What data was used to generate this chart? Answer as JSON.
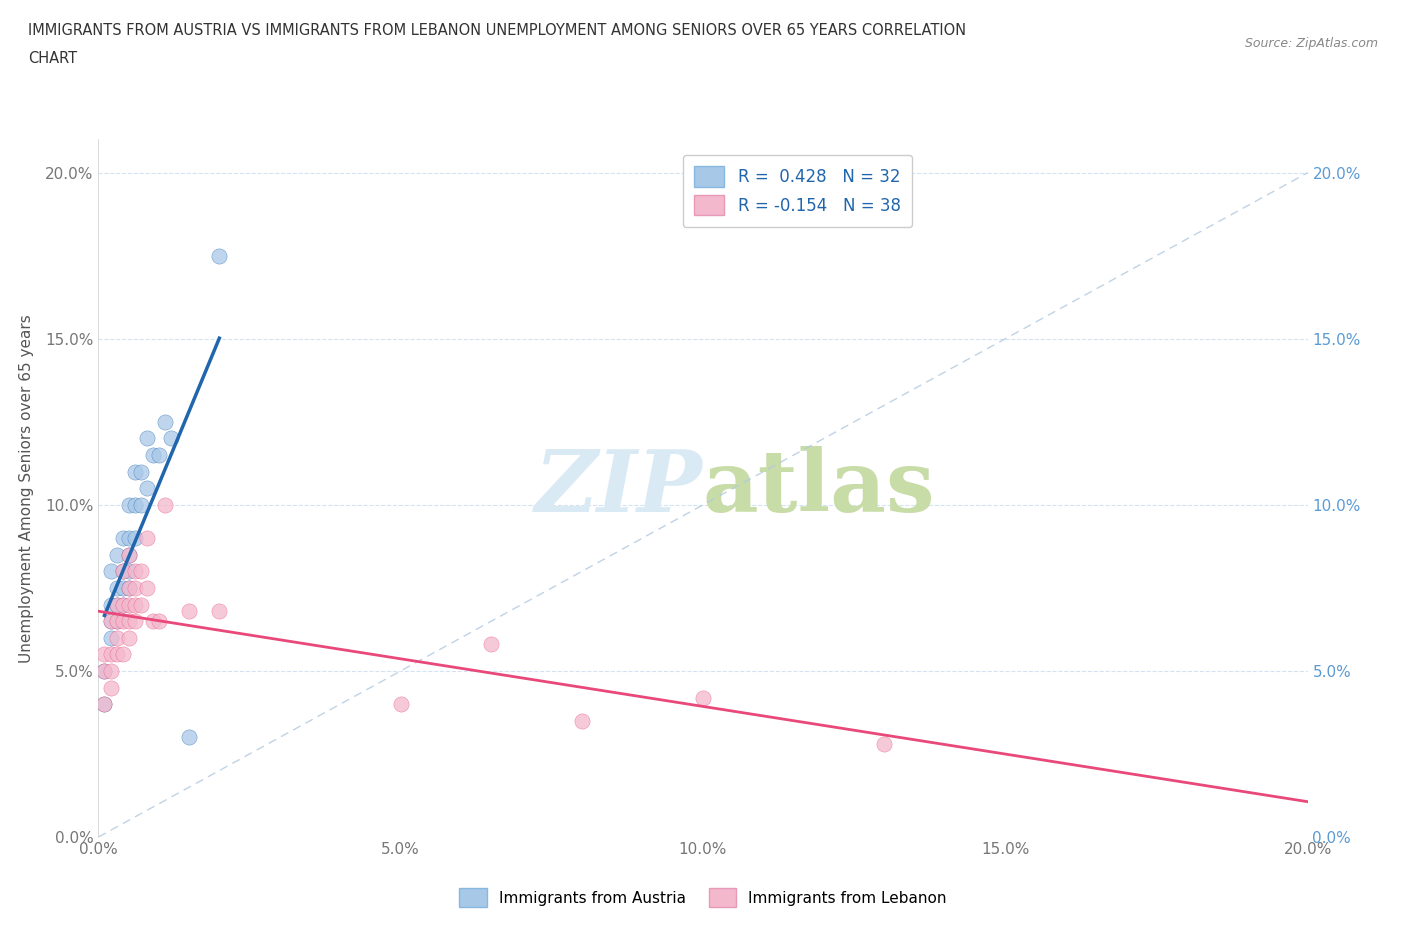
{
  "title_line1": "IMMIGRANTS FROM AUSTRIA VS IMMIGRANTS FROM LEBANON UNEMPLOYMENT AMONG SENIORS OVER 65 YEARS CORRELATION",
  "title_line2": "CHART",
  "source_text": "Source: ZipAtlas.com",
  "ylabel": "Unemployment Among Seniors over 65 years",
  "legend_bottom_austria": "Immigrants from Austria",
  "legend_bottom_lebanon": "Immigrants from Lebanon",
  "r_austria": 0.428,
  "n_austria": 32,
  "r_lebanon": -0.154,
  "n_lebanon": 38,
  "xlim": [
    0.0,
    0.2
  ],
  "ylim": [
    0.0,
    0.21
  ],
  "xticks": [
    0.0,
    0.05,
    0.1,
    0.15,
    0.2
  ],
  "yticks": [
    0.0,
    0.05,
    0.1,
    0.15,
    0.2
  ],
  "color_austria": "#a8c8e8",
  "color_lebanon": "#f4b8cc",
  "color_trendline_austria": "#2166ac",
  "color_trendline_lebanon": "#e8497a",
  "color_dashed": "#b0c8e0",
  "watermark_color": "#daeaf5",
  "austria_x": [
    0.001,
    0.001,
    0.002,
    0.002,
    0.002,
    0.002,
    0.003,
    0.003,
    0.003,
    0.003,
    0.004,
    0.004,
    0.004,
    0.004,
    0.005,
    0.005,
    0.005,
    0.005,
    0.005,
    0.006,
    0.006,
    0.006,
    0.007,
    0.007,
    0.008,
    0.008,
    0.009,
    0.01,
    0.011,
    0.012,
    0.015,
    0.02
  ],
  "austria_y": [
    0.04,
    0.05,
    0.06,
    0.065,
    0.07,
    0.08,
    0.065,
    0.07,
    0.075,
    0.085,
    0.07,
    0.075,
    0.08,
    0.09,
    0.075,
    0.08,
    0.085,
    0.09,
    0.1,
    0.09,
    0.1,
    0.11,
    0.1,
    0.11,
    0.105,
    0.12,
    0.115,
    0.115,
    0.125,
    0.12,
    0.03,
    0.175
  ],
  "lebanon_x": [
    0.001,
    0.001,
    0.001,
    0.002,
    0.002,
    0.002,
    0.002,
    0.003,
    0.003,
    0.003,
    0.003,
    0.004,
    0.004,
    0.004,
    0.004,
    0.005,
    0.005,
    0.005,
    0.005,
    0.005,
    0.006,
    0.006,
    0.006,
    0.006,
    0.007,
    0.007,
    0.008,
    0.008,
    0.009,
    0.01,
    0.011,
    0.015,
    0.02,
    0.05,
    0.065,
    0.08,
    0.1,
    0.13
  ],
  "lebanon_y": [
    0.04,
    0.05,
    0.055,
    0.045,
    0.05,
    0.055,
    0.065,
    0.055,
    0.06,
    0.065,
    0.07,
    0.055,
    0.065,
    0.07,
    0.08,
    0.06,
    0.065,
    0.07,
    0.075,
    0.085,
    0.065,
    0.07,
    0.075,
    0.08,
    0.07,
    0.08,
    0.075,
    0.09,
    0.065,
    0.065,
    0.1,
    0.068,
    0.068,
    0.04,
    0.058,
    0.035,
    0.042,
    0.028
  ]
}
